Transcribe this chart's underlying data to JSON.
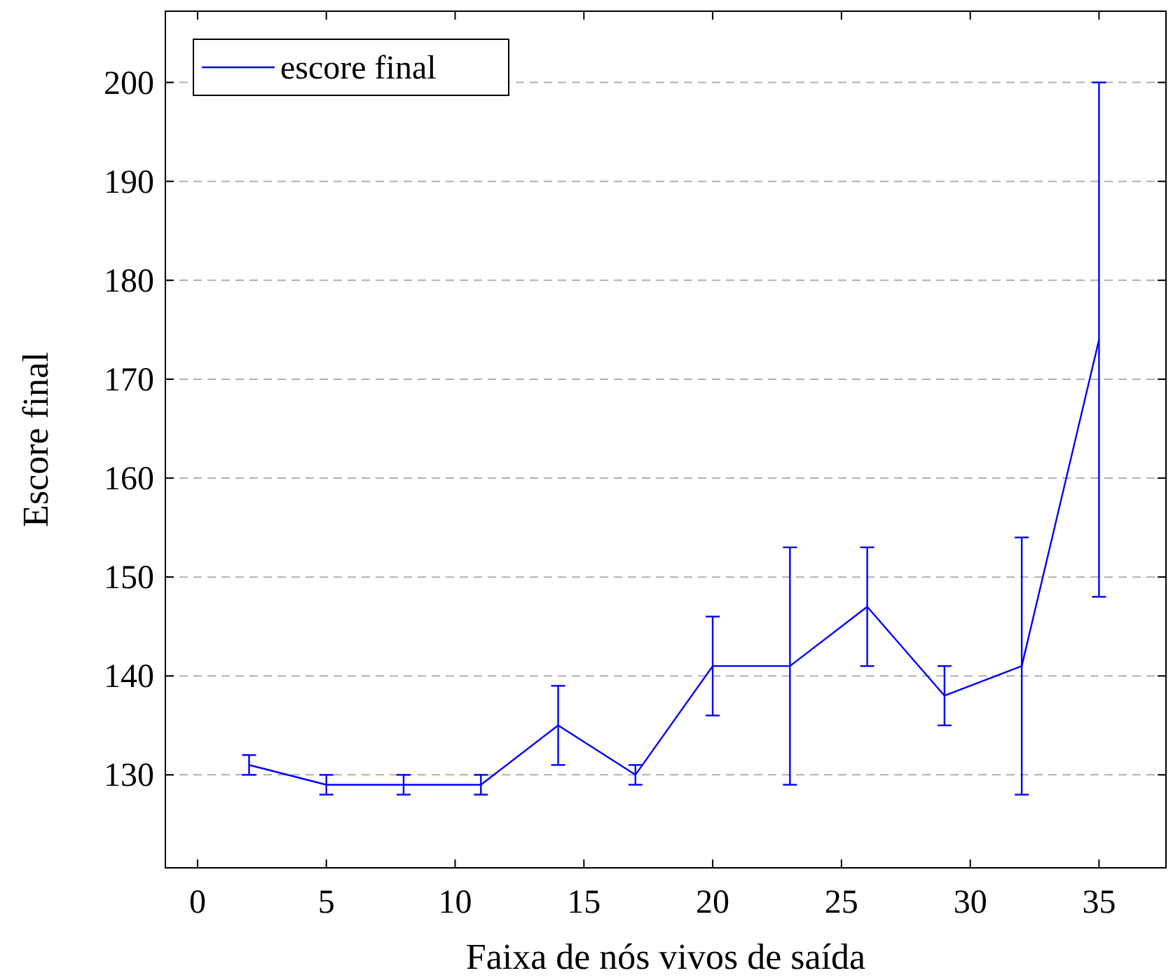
{
  "chart_data": {
    "type": "line",
    "xlabel": "Faixa de nós vivos de saída",
    "ylabel": "Escore final",
    "x": [
      2,
      5,
      8,
      11,
      14,
      17,
      20,
      23,
      26,
      29,
      32,
      35
    ],
    "series": [
      {
        "name": "escore final",
        "color": "#0000ff",
        "values": [
          131,
          129,
          129,
          129,
          135,
          130,
          141,
          141,
          147,
          138,
          141,
          174
        ],
        "errors": [
          [
            130,
            132
          ],
          [
            128,
            130
          ],
          [
            128,
            130
          ],
          [
            128,
            130
          ],
          [
            131,
            139
          ],
          [
            129,
            131
          ],
          [
            136,
            146
          ],
          [
            129,
            153
          ],
          [
            141,
            153
          ],
          [
            135,
            141
          ],
          [
            128,
            154
          ],
          [
            148,
            200
          ]
        ]
      }
    ],
    "xlim": [
      -1.25,
      37.6
    ],
    "ylim": [
      120.6,
      207.2
    ],
    "xticks": [
      0,
      5,
      10,
      15,
      20,
      25,
      30,
      35
    ],
    "yticks": [
      130,
      140,
      150,
      160,
      170,
      180,
      190,
      200
    ],
    "grid": "y",
    "legend": "top left",
    "marker": "none",
    "line_style": "solid"
  }
}
